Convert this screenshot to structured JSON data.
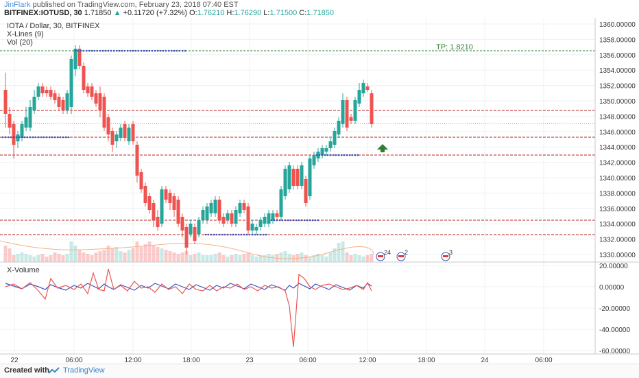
{
  "header": {
    "author": "JinFlark",
    "published": "published on TradingView.com, February 23, 2018 07:40 EST",
    "symbol": "BITFINEX:IOTUSD, 30",
    "last": "1.71850",
    "change": "+0.11720 (+7.32%)",
    "open_label": "O:",
    "open": "1.76210",
    "high_label": "H:",
    "high": "1.76290",
    "low_label": "L:",
    "low": "1.71500",
    "close_label": "C:",
    "close": "1.71850"
  },
  "legend": {
    "title": "IOTA / Dollar, 30, BITFINEX",
    "xlines": "X-Lines (9)",
    "vol": "Vol (20)"
  },
  "tp_label": "TP: 1.8210",
  "volume_pane": {
    "title": "X-Volume"
  },
  "price_axis": [
    "1360.00000",
    "1358.00000",
    "1356.00000",
    "1354.00000",
    "1352.00000",
    "1350.00000",
    "1348.00000",
    "1346.00000",
    "1344.00000",
    "1342.00000",
    "1340.00000",
    "1338.00000",
    "1336.00000",
    "1334.00000",
    "1332.00000",
    "1330.00000"
  ],
  "vol_axis": [
    "20.00000",
    "0.00000",
    "-20.00000",
    "-40.00000",
    "-60.00000"
  ],
  "time_axis": [
    "22",
    "06:00",
    "12:00",
    "18:00",
    "23",
    "06:00",
    "12:00",
    "18:00",
    "24",
    "06:00"
  ],
  "event_badges": [
    "24",
    "2",
    "3"
  ],
  "footer": {
    "created": "Created with",
    "brand": "TradingView"
  },
  "colors": {
    "up": "#26a69a",
    "down": "#ef5350",
    "level": "#b71c1c",
    "tp": "#2e7d32",
    "xline": "#3f51b5"
  }
}
